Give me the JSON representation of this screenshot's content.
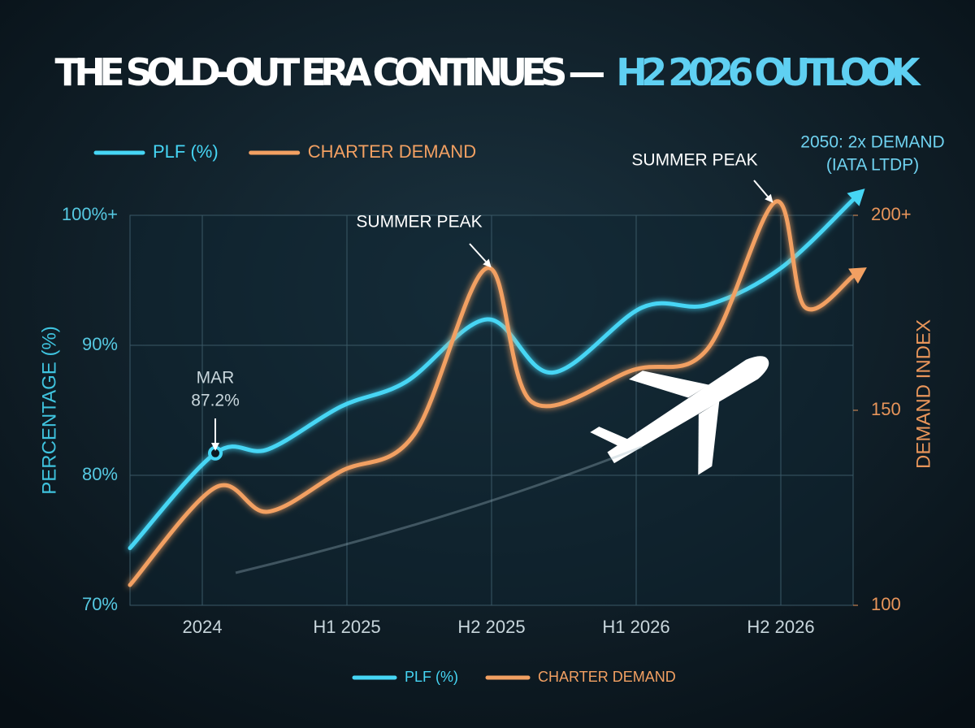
{
  "chart_data": {
    "type": "line",
    "title": "THE SOLD-OUT ERA CONTINUES —",
    "title_highlight": "H2 2026 OUTLOOK",
    "y_label": "PERCENTAGE (%)",
    "y2_label": "DEMAND INDEX",
    "xlim": [
      0,
      10
    ],
    "xticks": [
      {
        "value": 1,
        "label": "2024"
      },
      {
        "value": 3,
        "label": "H1 2025"
      },
      {
        "value": 5,
        "label": "H2 2025"
      },
      {
        "value": 7,
        "label": "H1 2026"
      },
      {
        "value": 9,
        "label": "H2 2026"
      }
    ],
    "ylim": [
      70,
      100
    ],
    "yticks": [
      {
        "value": 70,
        "label": "70%"
      },
      {
        "value": 80,
        "label": "80%"
      },
      {
        "value": 90,
        "label": "90%"
      },
      {
        "value": 100,
        "label": "100%+"
      }
    ],
    "y2lim": [
      100,
      200
    ],
    "y2ticks": [
      100,
      150,
      {
        "value": 200,
        "label": "200+"
      }
    ],
    "grid": true,
    "series": [
      {
        "name": "PLF (%)",
        "color": "#46d6f5",
        "x": [
          0,
          1.18,
          1.91,
          2.92,
          3.82,
          4.94,
          5.84,
          7.08,
          7.98,
          8.99,
          10
        ],
        "values": [
          74.4,
          81.7,
          82.0,
          85.3,
          87.2,
          92.0,
          87.9,
          92.9,
          93.1,
          95.9,
          101.2
        ]
      },
      {
        "name": "CHARTER DEMAND",
        "color": "#f2a062",
        "axis": "y2",
        "x": [
          0,
          1.18,
          1.91,
          2.92,
          3.93,
          4.94,
          5.56,
          6.97,
          7.98,
          8.93,
          9.33,
          10
        ],
        "values": [
          105.2,
          130.2,
          124.0,
          134.4,
          143.8,
          186.5,
          152.1,
          160.4,
          165.6,
          203.5,
          176.5,
          184.4
        ]
      }
    ],
    "annotations": [
      {
        "lines": [
          "MAR",
          "87.2%"
        ]
      },
      {
        "lines": [
          "SUMMER PEAK"
        ]
      },
      {
        "lines": [
          "SUMMER PEAK"
        ]
      },
      {
        "lines": [
          "2050: 2x DEMAND",
          "(IATA LTDP)"
        ]
      }
    ]
  }
}
